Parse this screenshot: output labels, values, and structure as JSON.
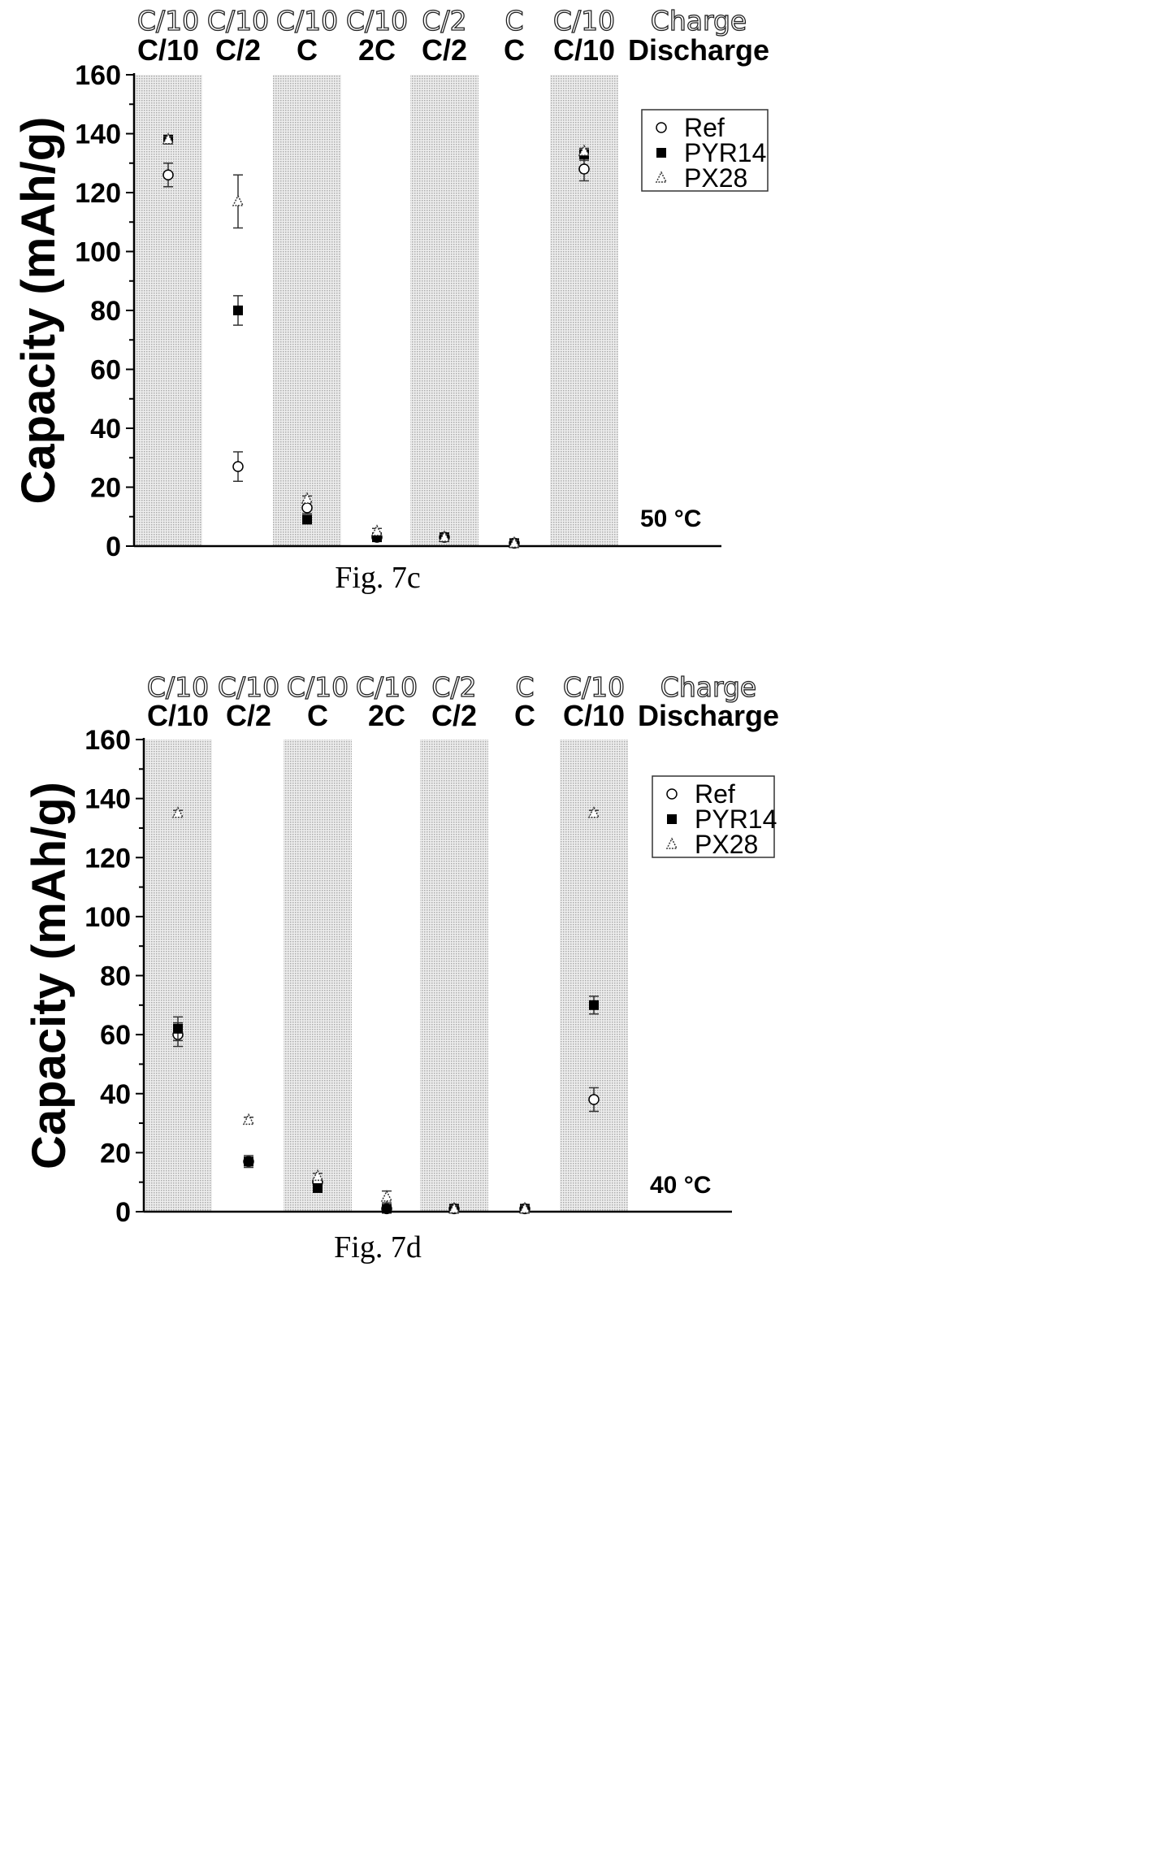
{
  "chart_data": [
    {
      "type": "scatter",
      "caption": "Fig. 7c",
      "temperature": "50 °C",
      "ylabel": "Capacity (mAh/g)",
      "ylim": [
        0,
        160
      ],
      "yticks": [
        "0",
        "20",
        "40",
        "60",
        "80",
        "100",
        "120",
        "140",
        "160"
      ],
      "row_labels": [
        "Charge",
        "Discharge"
      ],
      "categories": [
        {
          "charge": "C/10",
          "discharge": "C/10",
          "shaded": true
        },
        {
          "charge": "C/10",
          "discharge": "C/2",
          "shaded": false
        },
        {
          "charge": "C/10",
          "discharge": "C",
          "shaded": true
        },
        {
          "charge": "C/10",
          "discharge": "2C",
          "shaded": false
        },
        {
          "charge": "C/2",
          "discharge": "C/2",
          "shaded": true
        },
        {
          "charge": "C",
          "discharge": "C",
          "shaded": false
        },
        {
          "charge": "C/10",
          "discharge": "C/10",
          "shaded": true
        }
      ],
      "legend_position": "top-right",
      "series": [
        {
          "name": "Ref",
          "marker": "open-circle",
          "values": [
            126,
            27,
            13,
            3,
            3,
            1,
            128
          ],
          "errors": [
            4,
            5,
            2,
            1,
            1,
            1,
            4
          ]
        },
        {
          "name": "PYR14",
          "marker": "filled-square",
          "values": [
            138,
            80,
            9,
            3,
            3,
            1,
            133
          ],
          "errors": [
            1,
            5,
            1,
            1,
            1,
            1,
            2
          ]
        },
        {
          "name": "PX28",
          "marker": "triangle",
          "values": [
            138,
            117,
            16,
            5,
            3,
            1,
            134
          ],
          "errors": [
            1,
            9,
            1,
            1,
            1,
            1,
            1
          ]
        }
      ]
    },
    {
      "type": "scatter",
      "caption": "Fig. 7d",
      "temperature": "40 °C",
      "ylabel": "Capacity (mAh/g)",
      "ylim": [
        0,
        160
      ],
      "yticks": [
        "0",
        "20",
        "40",
        "60",
        "80",
        "100",
        "120",
        "140",
        "160"
      ],
      "row_labels": [
        "Charge",
        "Discharge"
      ],
      "categories": [
        {
          "charge": "C/10",
          "discharge": "C/10",
          "shaded": true
        },
        {
          "charge": "C/10",
          "discharge": "C/2",
          "shaded": false
        },
        {
          "charge": "C/10",
          "discharge": "C",
          "shaded": true
        },
        {
          "charge": "C/10",
          "discharge": "2C",
          "shaded": false
        },
        {
          "charge": "C/2",
          "discharge": "C/2",
          "shaded": true
        },
        {
          "charge": "C",
          "discharge": "C",
          "shaded": false
        },
        {
          "charge": "C/10",
          "discharge": "C/10",
          "shaded": true
        }
      ],
      "legend_position": "top-right",
      "series": [
        {
          "name": "Ref",
          "marker": "open-circle",
          "values": [
            60,
            17,
            10,
            1,
            1,
            1,
            38
          ],
          "errors": [
            4,
            1,
            1,
            1,
            1,
            1,
            4
          ]
        },
        {
          "name": "PYR14",
          "marker": "filled-square",
          "values": [
            62,
            17,
            8,
            1,
            1,
            1,
            70
          ],
          "errors": [
            4,
            2,
            1,
            1,
            1,
            1,
            3
          ]
        },
        {
          "name": "PX28",
          "marker": "triangle",
          "values": [
            135,
            31,
            12,
            5,
            1,
            1,
            135
          ],
          "errors": [
            1,
            1,
            1,
            2,
            1,
            1,
            1
          ]
        }
      ]
    }
  ]
}
